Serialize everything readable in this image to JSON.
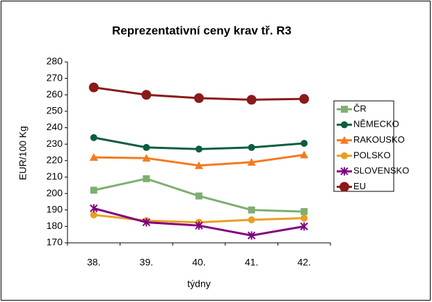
{
  "chart_data": {
    "type": "line",
    "title": "Reprezentativní ceny krav tř. R3",
    "x_label": "týdny",
    "y_label": "EUR/100 Kg",
    "categories": [
      "38.",
      "39.",
      "40.",
      "41.",
      "42."
    ],
    "ylim": [
      170,
      280
    ],
    "yticks": [
      170,
      180,
      190,
      200,
      210,
      220,
      230,
      240,
      250,
      260,
      270,
      280
    ],
    "grid": false,
    "legend": "right",
    "series": [
      {
        "name": "ČR",
        "color": "#7fae72",
        "marker": "square",
        "values": [
          202,
          209,
          198.5,
          190,
          189
        ]
      },
      {
        "name": "NĚMECKO",
        "color": "#0b5e3f",
        "marker": "circle",
        "values": [
          234,
          228,
          227,
          228,
          230.5
        ]
      },
      {
        "name": "RAKOUSKO",
        "color": "#f47a20",
        "marker": "triangle",
        "values": [
          222,
          221.5,
          217,
          219,
          223.5
        ]
      },
      {
        "name": "POLSKO",
        "color": "#e8a020",
        "marker": "circle",
        "values": [
          187,
          183.5,
          182.5,
          184,
          185
        ]
      },
      {
        "name": "SLOVENSKO",
        "color": "#800080",
        "marker": "star",
        "values": [
          191,
          182.5,
          180.5,
          174.5,
          180
        ]
      },
      {
        "name": "EU",
        "color": "#8b1a1a",
        "marker": "bigcircle",
        "values": [
          264.5,
          260,
          258,
          257,
          257.5
        ]
      }
    ]
  }
}
